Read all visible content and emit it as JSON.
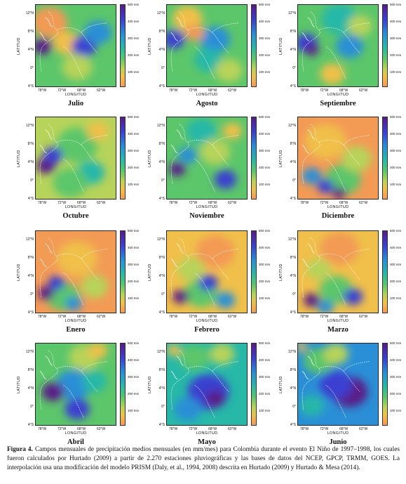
{
  "panels": [
    {
      "month": "Julio",
      "scheme": 0
    },
    {
      "month": "Agosto",
      "scheme": 1
    },
    {
      "month": "Septiembre",
      "scheme": 2
    },
    {
      "month": "Octubre",
      "scheme": 3
    },
    {
      "month": "Noviembre",
      "scheme": 4
    },
    {
      "month": "Diciembre",
      "scheme": 5
    },
    {
      "month": "Enero",
      "scheme": 6
    },
    {
      "month": "Febrero",
      "scheme": 7
    },
    {
      "month": "Marzo",
      "scheme": 8
    },
    {
      "month": "Abril",
      "scheme": 9
    },
    {
      "month": "Mayo",
      "scheme": 10
    },
    {
      "month": "Junio",
      "scheme": 11
    }
  ],
  "axes": {
    "xlabel": "LONGITUD",
    "ylabel": "LATITUD",
    "lat_ticks": [
      "12°N",
      "8°N",
      "4°N",
      "0°",
      "4°S"
    ],
    "lon_ticks": [
      "78°W",
      "72°W",
      "68°W",
      "62°W"
    ]
  },
  "colorbar": {
    "labels": [
      "500 mm",
      "400 mm",
      "300 mm",
      "200 mm",
      "100 mm"
    ],
    "colors": [
      "#5a1a86",
      "#3b3fd0",
      "#2a8fd6",
      "#27b8a8",
      "#5cc66a",
      "#b7d35a",
      "#f0c04a",
      "#f39a55"
    ]
  },
  "caption": {
    "label": "Figura 4.",
    "text": " Campos mensuales de precipitación medios mensuales (en mm/mes) para Colombia durante el evento El Niño de 1997–1998, los cuales fueron calculados por Hurtado (2009) a partir de 2.270 estaciones pluviográficas y las bases de datos del NCEP, GPCP, TRMM, GOES. La interpolación usa una modificación del modelo PRISM (Daly, et al., 1994, 2008) descrita en Hurtado (2009) y Hurtado & Mesa (2014)."
  }
}
